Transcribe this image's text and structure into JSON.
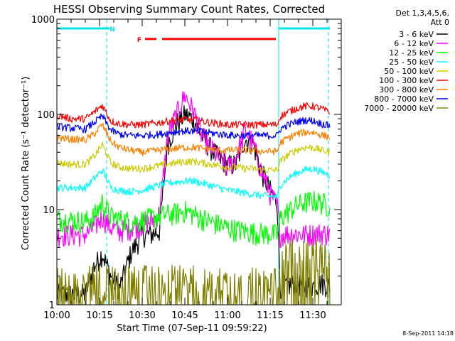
{
  "chart_data": {
    "type": "line",
    "title": "HESSI Observing Summary Count Rates, Corrected",
    "xlabel": "Start Time (07-Sep-11 09:59:22)",
    "ylabel": "Corrected Count Rate (s⁻¹ detector⁻¹)",
    "timestamp": "8-Sep-2011 14:18",
    "yscale": "log",
    "xlim": [
      0,
      100
    ],
    "ylim": [
      1,
      1000
    ],
    "grid": false,
    "legend_position": "right",
    "x_ticks": [
      {
        "t": 0,
        "label": "10:00"
      },
      {
        "t": 15,
        "label": "10:15"
      },
      {
        "t": 30,
        "label": "10:30"
      },
      {
        "t": 45,
        "label": "10:45"
      },
      {
        "t": 60,
        "label": "11:00"
      },
      {
        "t": 75,
        "label": "11:15"
      },
      {
        "t": 90,
        "label": "11:30"
      }
    ],
    "y_ticks": [
      {
        "v": 1,
        "label": "1"
      },
      {
        "v": 10,
        "label": "10"
      },
      {
        "v": 100,
        "label": "100"
      },
      {
        "v": 1000,
        "label": "1000"
      }
    ],
    "legend_header": [
      "Det 1,3,4,5,6,",
      "Att 0"
    ],
    "annotations": [
      {
        "label": "N",
        "t": 19.5,
        "v": 800,
        "color": "#00e5e5"
      },
      {
        "label": "F",
        "t": 29,
        "v": 620,
        "color": "#ff0000"
      }
    ],
    "bars": [
      {
        "name": "night",
        "t0": 0,
        "t1": 18.5,
        "v": 800,
        "color": "#00e5e5"
      },
      {
        "name": "night",
        "t0": 78,
        "t1": 96,
        "v": 800,
        "color": "#00e5e5"
      },
      {
        "name": "flare",
        "t0": 31,
        "t1": 35,
        "v": 620,
        "color": "#ff0000"
      },
      {
        "name": "flare",
        "t0": 37,
        "t1": 77,
        "v": 620,
        "color": "#ff0000"
      }
    ],
    "night_bounds": [
      {
        "t": 0,
        "color": "#00e5e5",
        "style": "solid"
      },
      {
        "t": 17.5,
        "color": "#00e5e5",
        "style": "dashed"
      },
      {
        "t": 78,
        "color": "#00e5e5",
        "style": "solid"
      },
      {
        "t": 95.5,
        "color": "#00e5e5",
        "style": "dashed"
      }
    ],
    "x": [
      0,
      5,
      10,
      13,
      16,
      19,
      22,
      26,
      30,
      33,
      36,
      39,
      42,
      45,
      48,
      51,
      54,
      57,
      60,
      63,
      66,
      69,
      72,
      75,
      77.5,
      78.5,
      81,
      84,
      87,
      90,
      93,
      96
    ],
    "series": [
      {
        "name": "3 - 6 keV",
        "color": "#000000",
        "values": [
          1.3,
          1.3,
          1.3,
          2.5,
          3.5,
          2.0,
          1.5,
          3.5,
          5.5,
          5.5,
          6.0,
          50,
          80,
          100,
          90,
          60,
          45,
          35,
          30,
          30,
          55,
          50,
          25,
          16,
          12,
          1.6,
          1.6,
          1.7,
          1.6,
          1.6,
          1.7,
          1.6
        ]
      },
      {
        "name": "6 - 12 keV",
        "color": "#ff00ff",
        "values": [
          5.5,
          5.5,
          5.5,
          6.5,
          8.5,
          6.5,
          6.0,
          6.5,
          7.0,
          7.5,
          9.0,
          60,
          100,
          160,
          110,
          60,
          45,
          35,
          28,
          35,
          70,
          50,
          25,
          15,
          11,
          5.5,
          5.6,
          5.6,
          5.5,
          5.6,
          5.7,
          5.6
        ]
      },
      {
        "name": "12 - 25 keV",
        "color": "#00ff00",
        "values": [
          8.0,
          7.8,
          7.6,
          8.5,
          12,
          8.5,
          8.0,
          7.5,
          7.8,
          8.2,
          8.6,
          9.0,
          9.2,
          9.8,
          9.0,
          8.2,
          7.5,
          7.0,
          6.5,
          6.2,
          6.0,
          5.8,
          5.7,
          5.6,
          5.5,
          8.0,
          9.5,
          11,
          12,
          12.5,
          12,
          11
        ]
      },
      {
        "name": "25 - 50 keV",
        "color": "#00ffff",
        "values": [
          17,
          17,
          17,
          21,
          26,
          17,
          16,
          15.5,
          16,
          17,
          18,
          19,
          19.5,
          20,
          20,
          19,
          18,
          17,
          16,
          15.5,
          15,
          14.5,
          14,
          13.8,
          13.5,
          18,
          21,
          24,
          26,
          27,
          25,
          23
        ]
      },
      {
        "name": "50 - 100 keV",
        "color": "#cccc00",
        "values": [
          31,
          30,
          30,
          36,
          48,
          31,
          28,
          27,
          27,
          28,
          29,
          30,
          31,
          32,
          32,
          31,
          30,
          29,
          28,
          28,
          27,
          27,
          26,
          26,
          26,
          32,
          37,
          42,
          45,
          45,
          42,
          40
        ]
      },
      {
        "name": "100 - 300 keV",
        "color": "#ff0000",
        "values": [
          98,
          90,
          90,
          105,
          125,
          85,
          80,
          78,
          78,
          80,
          82,
          85,
          88,
          88,
          88,
          85,
          82,
          80,
          78,
          78,
          78,
          78,
          78,
          78,
          78,
          95,
          105,
          115,
          122,
          122,
          115,
          105
        ]
      },
      {
        "name": "300 - 800 keV",
        "color": "#ff8000",
        "values": [
          57,
          55,
          54,
          62,
          78,
          52,
          45,
          42,
          40,
          41,
          42,
          43,
          44,
          45,
          45,
          44,
          43,
          42,
          42,
          42,
          42,
          42,
          41,
          41,
          41,
          50,
          56,
          62,
          65,
          65,
          61,
          58
        ]
      },
      {
        "name": "800 - 7000 keV",
        "color": "#0000ff",
        "values": [
          75,
          72,
          70,
          82,
          96,
          68,
          62,
          60,
          60,
          61,
          62,
          64,
          66,
          67,
          67,
          66,
          64,
          62,
          61,
          60,
          60,
          60,
          60,
          60,
          60,
          70,
          77,
          83,
          87,
          86,
          80,
          76
        ]
      },
      {
        "name": "7000 - 20000 keV",
        "color": "#808000",
        "values": [
          1.9,
          1.9,
          1.9,
          1.9,
          1.9,
          1.8,
          1.8,
          1.8,
          1.8,
          1.8,
          1.8,
          1.8,
          1.8,
          1.8,
          1.8,
          1.7,
          1.7,
          1.7,
          1.7,
          1.7,
          1.7,
          1.7,
          1.7,
          1.7,
          1.7,
          3.0,
          3.2,
          3.5,
          3.5,
          3.4,
          3.2,
          3.0
        ]
      }
    ]
  }
}
